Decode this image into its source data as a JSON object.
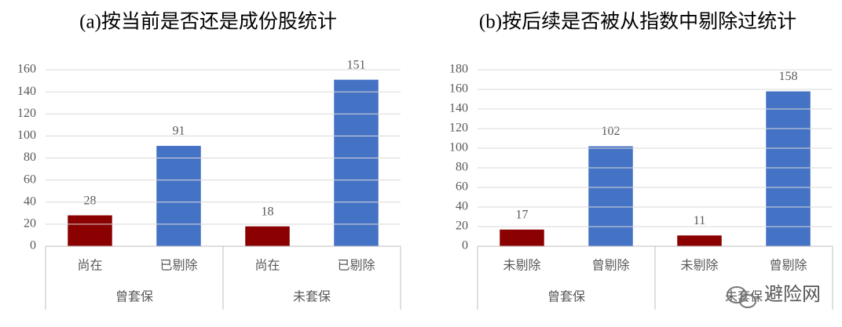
{
  "chart_data": [
    {
      "type": "bar",
      "title": "(a)按当前是否还是成份股统计",
      "groups": [
        {
          "name": "曾套保",
          "categories": [
            "尚在",
            "已剔除"
          ],
          "values": [
            28,
            91
          ],
          "colors": [
            "#8b0000",
            "#4472c4"
          ]
        },
        {
          "name": "未套保",
          "categories": [
            "尚在",
            "已剔除"
          ],
          "values": [
            18,
            151
          ],
          "colors": [
            "#8b0000",
            "#4472c4"
          ]
        }
      ],
      "ylim": [
        0,
        160
      ],
      "yticks": [
        0,
        20,
        40,
        60,
        80,
        100,
        120,
        140,
        160
      ],
      "grid": true
    },
    {
      "type": "bar",
      "title": "(b)按后续是否被从指数中剔除过统计",
      "groups": [
        {
          "name": "曾套保",
          "categories": [
            "未剔除",
            "曾剔除"
          ],
          "values": [
            17,
            102
          ],
          "colors": [
            "#8b0000",
            "#4472c4"
          ]
        },
        {
          "name": "未套保",
          "categories": [
            "未剔除",
            "曾剔除"
          ],
          "values": [
            11,
            158
          ],
          "colors": [
            "#8b0000",
            "#4472c4"
          ]
        }
      ],
      "ylim": [
        0,
        180
      ],
      "yticks": [
        0,
        20,
        40,
        60,
        80,
        100,
        120,
        140,
        160,
        180
      ],
      "grid": true
    }
  ],
  "watermark": "避险网"
}
